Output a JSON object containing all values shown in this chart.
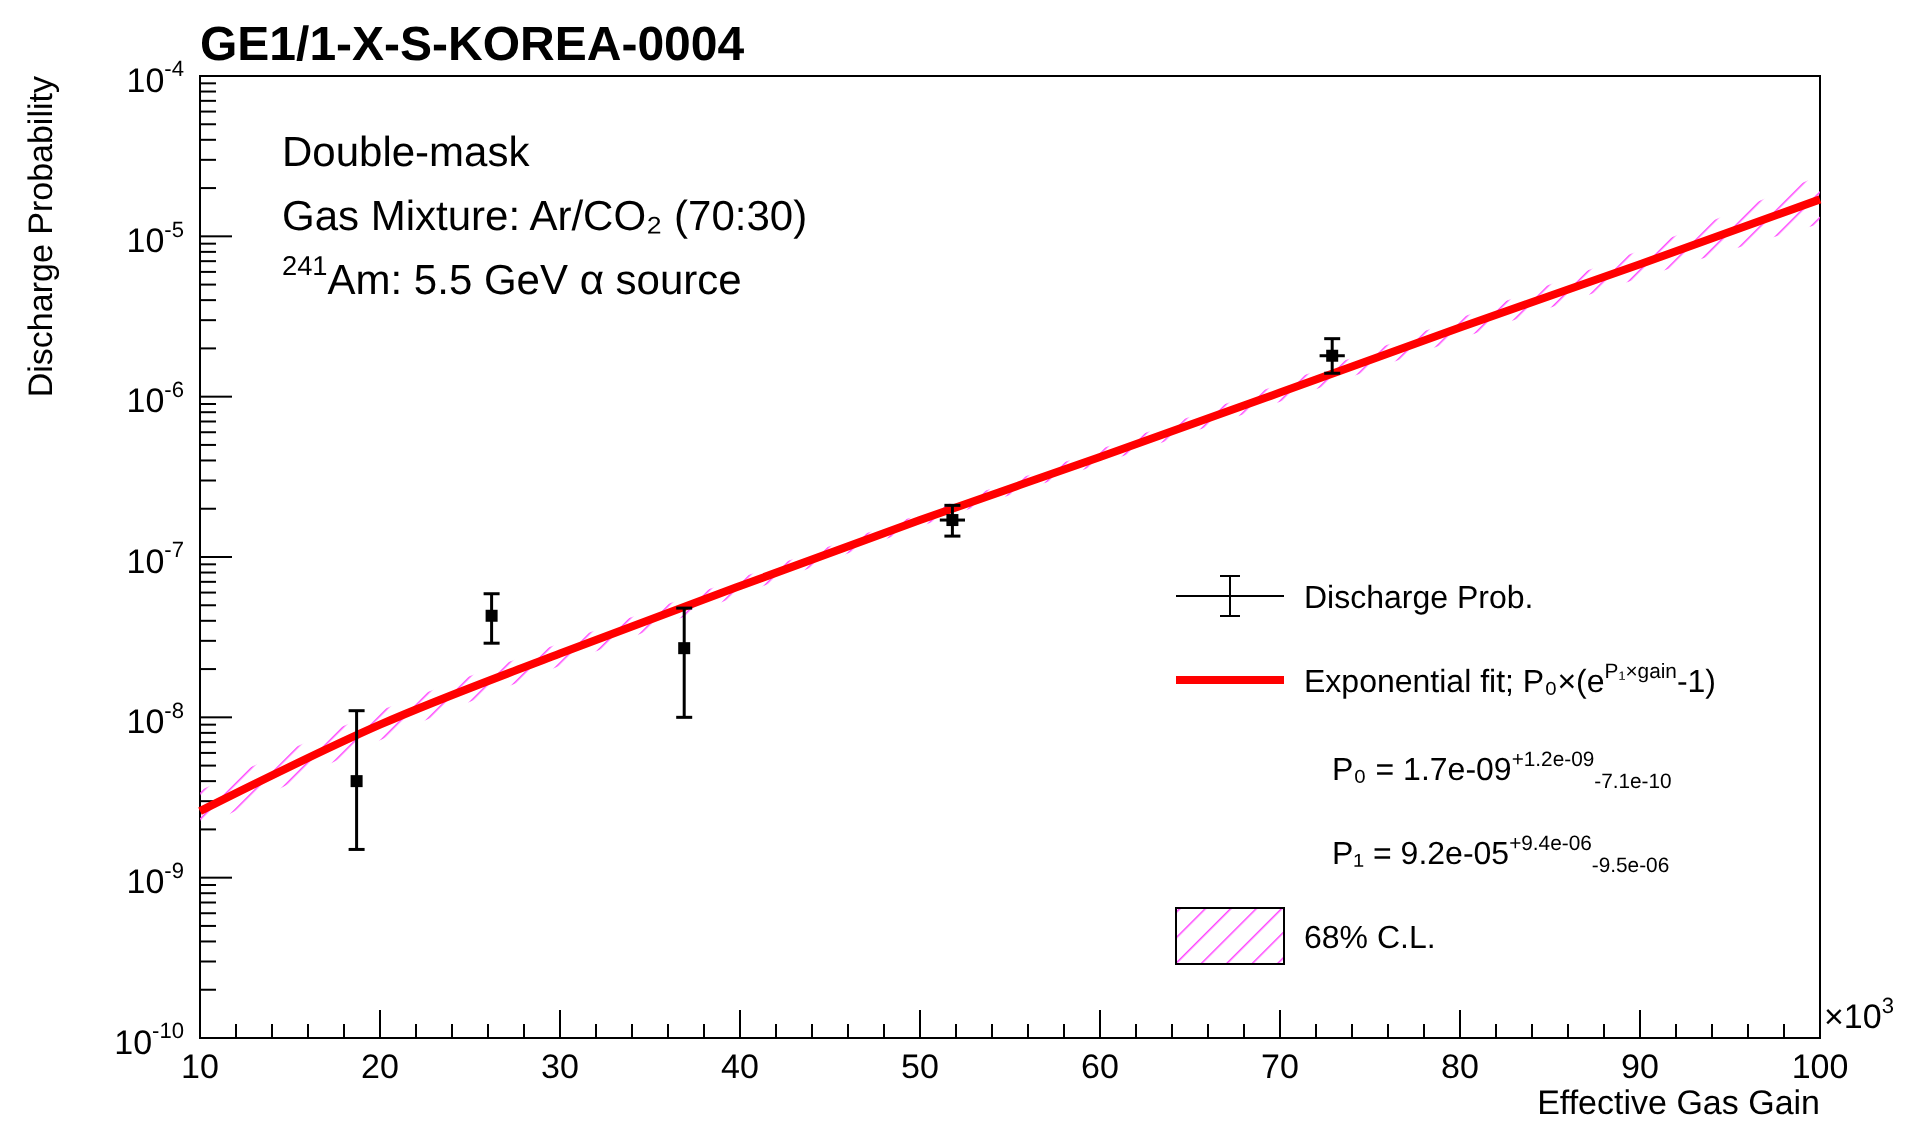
{
  "chart_data": {
    "type": "scatter",
    "title": "GE1/1-X-S-KOREA-0004",
    "xlabel": "Effective Gas Gain",
    "ylabel": "Discharge Probability",
    "xlim": [
      10,
      100
    ],
    "xticks": [
      10,
      20,
      30,
      40,
      50,
      60,
      70,
      80,
      90,
      100
    ],
    "ylim": [
      1e-10,
      0.0001
    ],
    "yticks": [
      {
        "value": 1e-10,
        "label": "10$^{-10}$"
      },
      {
        "value": 1e-09,
        "label": "10$^{-9}$"
      },
      {
        "value": 1e-08,
        "label": "10$^{-8}$"
      },
      {
        "value": 1e-07,
        "label": "10$^{-7}$"
      },
      {
        "value": 1e-06,
        "label": "10$^{-6}$"
      },
      {
        "value": 1e-05,
        "label": "10$^{-5}$"
      },
      {
        "value": 0.0001,
        "label": "10$^{-4}$"
      }
    ],
    "log": "y",
    "grid": false,
    "legend": "right",
    "marker": "square",
    "series": [
      {
        "name": "Discharge Prob.",
        "color": "#000000",
        "x": [
          18.7,
          26.2,
          36.9,
          51.8,
          72.9
        ],
        "values": [
          4e-09,
          4.3e-08,
          2.7e-08,
          1.7e-07,
          1.8e-06
        ],
        "errors": [
          [
            1.5e-09,
            1.1e-08
          ],
          [
            2.9e-08,
            5.9e-08
          ],
          [
            1e-08,
            4.8e-08
          ],
          [
            1.35e-07,
            2.1e-07
          ],
          [
            1.4e-06,
            2.3e-06
          ]
        ],
        "xerrors": [
          null,
          null,
          null,
          0.7,
          0.7
        ]
      },
      {
        "name": "Exponential fit; P₀×(e$^{P₁×gain}$-1)",
        "type": "line",
        "marker": "none",
        "color": "#ff0000",
        "line_style": "solid",
        "x": [
          10,
          20,
          30,
          40,
          50,
          60,
          70,
          80,
          90,
          100
        ],
        "values": [
          2.6e-09,
          9e-09,
          2.5e-08,
          6.6e-08,
          1.7e-07,
          4.2e-07,
          1.06e-06,
          2.7e-06,
          6.7e-06,
          1.7e-05
        ],
        "lower": [
          2e-09,
          7.2e-09,
          2.1e-08,
          5.8e-08,
          1.55e-07,
          3.8e-07,
          9.3e-07,
          2.3e-06,
          5.5e-06,
          1.2e-05
        ],
        "upper": [
          3.5e-09,
          1.1e-08,
          2.9e-08,
          7.4e-08,
          1.85e-07,
          4.7e-07,
          1.2e-06,
          3.1e-06,
          8.2e-06,
          2.4e-05
        ]
      }
    ],
    "annotations": [
      "Double-mask",
      "Gas Mixture: Ar/CO₂ (70:30)",
      "$^{241}$Am: 5.5 GeV α source",
      "×10$^{3}$",
      "P₀ = 1.7e-09$^{+1.2e-09}$$_{-7.1e-10}$",
      "P₁ = 9.2e-05$^{+9.4e-06}$$_{-9.5e-06}$",
      "68% C.L."
    ]
  }
}
